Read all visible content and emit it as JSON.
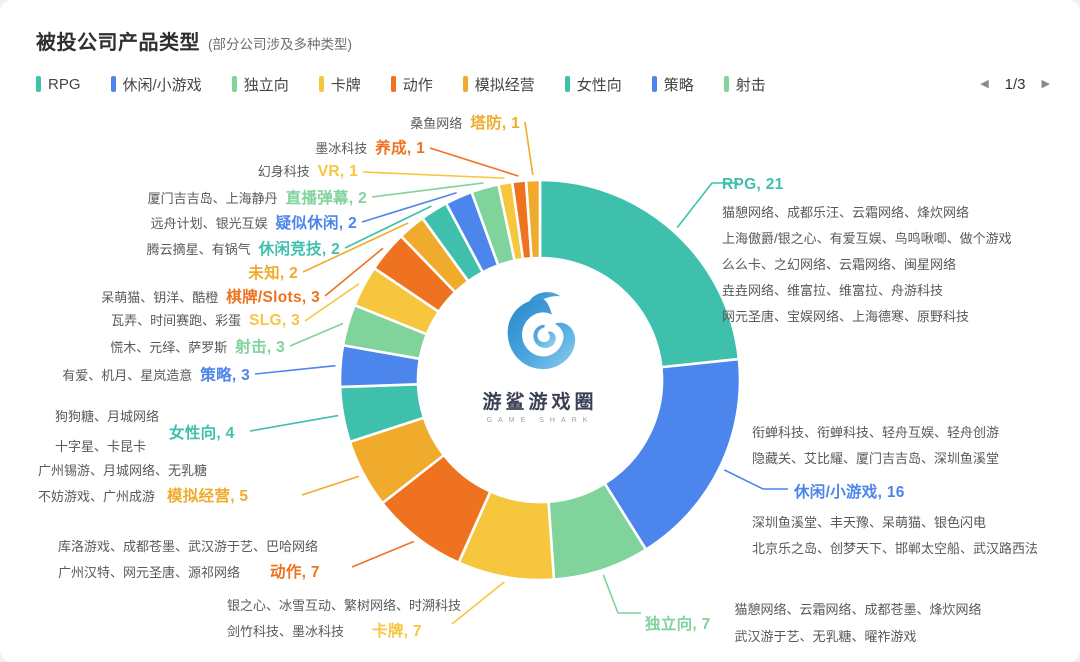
{
  "header": {
    "title": "被投公司产品类型",
    "subtitle": "(部分公司涉及多种类型)"
  },
  "legend": {
    "items": [
      {
        "label": "RPG",
        "color": "#3EC0AD"
      },
      {
        "label": "休闲/小游戏",
        "color": "#4C85EC"
      },
      {
        "label": "独立向",
        "color": "#7FD39B"
      },
      {
        "label": "卡牌",
        "color": "#F6C63E"
      },
      {
        "label": "动作",
        "color": "#EE7220"
      },
      {
        "label": "模拟经营",
        "color": "#F0AB2D"
      },
      {
        "label": "女性向",
        "color": "#3EC0AD"
      },
      {
        "label": "策略",
        "color": "#4C85EC"
      },
      {
        "label": "射击",
        "color": "#7FD39B"
      }
    ],
    "pagination": {
      "prev_icon": "◀",
      "current": "1/3",
      "next_icon": "▶"
    }
  },
  "center_logo": {
    "title": "游鲨游戏圈",
    "subtitle": "GAME SHARK"
  },
  "chart_data": {
    "type": "pie",
    "title": "被投公司产品类型",
    "legend_position": "top",
    "donut": true,
    "segments": [
      {
        "name": "RPG",
        "value": 21,
        "color": "#3EC0AD",
        "companies_lines": [
          "猫憩网络、成都乐汪、云霜网络、烽炊网络",
          "上海傲爵/银之心、有爱互娱、鸟鸣啾唧、做个游戏",
          "么么卡、之幻网络、云霜网络、闽星网络",
          "垚垚网络、维富拉、维富拉、舟游科技",
          "网元圣唐、宝娱网络、上海德寒、原野科技"
        ]
      },
      {
        "name": "休闲/小游戏",
        "value": 16,
        "color": "#4C85EC",
        "companies_lines": [
          "衔蝉科技、衔蝉科技、轻舟互娱、轻舟创游",
          "隐藏关、艾比耀、厦门吉吉岛、深圳鱼溪堂"
        ],
        "companies_lines_below": [
          "深圳鱼溪堂、丰天豫、呆萌猫、银色闪电",
          "北京乐之岛、创梦天下、邯郸太空船、武汉路西法"
        ]
      },
      {
        "name": "独立向",
        "value": 7,
        "color": "#7FD39B",
        "companies_lines": [
          "猫憩网络、云霜网络、成都苍墨、烽炊网络",
          "武汉游于艺、无乳糖、曜祚游戏"
        ]
      },
      {
        "name": "卡牌",
        "value": 7,
        "color": "#F6C63E",
        "companies_lines": [
          "银之心、冰雪互动、繁树网络、时溯科技",
          "剑竹科技、墨冰科技"
        ]
      },
      {
        "name": "动作",
        "value": 7,
        "color": "#EE7220",
        "companies_lines": [
          "库洛游戏、成都苍墨、武汉游于艺、巴哈网络",
          "广州汉特、网元圣唐、源祁网络"
        ]
      },
      {
        "name": "模拟经营",
        "value": 5,
        "color": "#F0AB2D",
        "companies_lines": [
          "广州锡游、月城网络、无乳糖",
          "不妨游戏、广州成游"
        ]
      },
      {
        "name": "女性向",
        "value": 4,
        "color": "#3EC0AD",
        "companies_lines": [
          "狗狗糖、月城网络",
          "十字星、卡昆卡"
        ]
      },
      {
        "name": "策略",
        "value": 3,
        "color": "#4C85EC",
        "companies_lines": [
          "有爱、机月、星岚造意"
        ]
      },
      {
        "name": "射击",
        "value": 3,
        "color": "#7FD39B",
        "companies_lines": [
          "慌木、元绎、萨罗斯"
        ]
      },
      {
        "name": "SLG",
        "value": 3,
        "color": "#F6C63E",
        "companies_lines": [
          "瓦弄、时间赛跑、彩蛋"
        ]
      },
      {
        "name": "棋牌/Slots",
        "value": 3,
        "color": "#EE7220",
        "companies_lines": [
          "呆萌猫、钥洋、酷橙"
        ]
      },
      {
        "name": "未知",
        "value": 2,
        "color": "#F0AB2D",
        "companies_lines": []
      },
      {
        "name": "休闲竞技",
        "value": 2,
        "color": "#3EC0AD",
        "companies_lines": [
          "腾云摘星、有锅气"
        ]
      },
      {
        "name": "疑似休闲",
        "value": 2,
        "color": "#4C85EC",
        "companies_lines": [
          "远舟计划、银光互娱"
        ]
      },
      {
        "name": "直播弹幕",
        "value": 2,
        "color": "#7FD39B",
        "companies_lines": [
          "厦门吉吉岛、上海静丹"
        ]
      },
      {
        "name": "VR",
        "value": 1,
        "color": "#F6C63E",
        "companies_lines": [
          "幻身科技"
        ]
      },
      {
        "name": "养成",
        "value": 1,
        "color": "#EE7220",
        "companies_lines": [
          "墨冰科技"
        ]
      },
      {
        "name": "塔防",
        "value": 1,
        "color": "#F0AB2D",
        "companies_lines": [
          "桑鱼网络"
        ]
      }
    ]
  }
}
